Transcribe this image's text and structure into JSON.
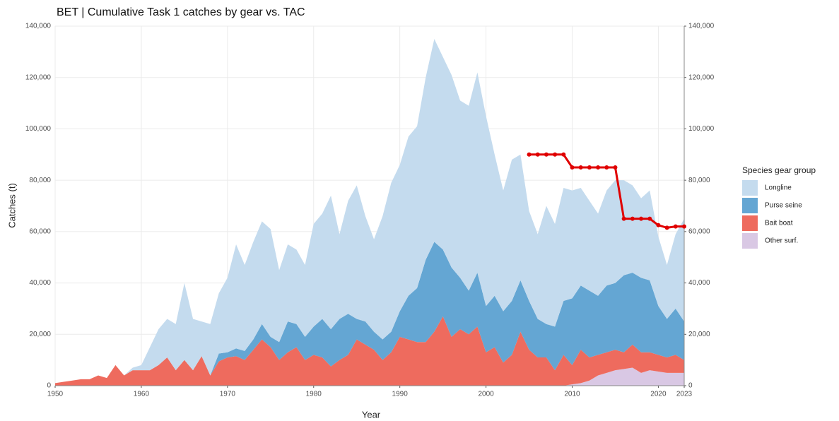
{
  "chart_data": {
    "type": "stacked_area",
    "title": "BET | Cumulative Task 1 catches by gear vs. TAC",
    "x_label": "Year",
    "y_label": "Catches (t)",
    "legend_title": "Species gear group",
    "legend_position": "right",
    "grid": true,
    "x": [
      1950,
      1951,
      1952,
      1953,
      1954,
      1955,
      1956,
      1957,
      1958,
      1959,
      1960,
      1961,
      1962,
      1963,
      1964,
      1965,
      1966,
      1967,
      1968,
      1969,
      1970,
      1971,
      1972,
      1973,
      1974,
      1975,
      1976,
      1977,
      1978,
      1979,
      1980,
      1981,
      1982,
      1983,
      1984,
      1985,
      1986,
      1987,
      1988,
      1989,
      1990,
      1991,
      1992,
      1993,
      1994,
      1995,
      1996,
      1997,
      1998,
      1999,
      2000,
      2001,
      2002,
      2003,
      2004,
      2005,
      2006,
      2007,
      2008,
      2009,
      2010,
      2011,
      2012,
      2013,
      2014,
      2015,
      2016,
      2017,
      2018,
      2019,
      2020,
      2021,
      2022,
      2023
    ],
    "series": [
      {
        "name": "Other surf.",
        "color": "#d9c8e4",
        "values": [
          0,
          0,
          0,
          0,
          0,
          0,
          0,
          0,
          0,
          0,
          0,
          0,
          0,
          0,
          0,
          0,
          0,
          0,
          0,
          0,
          0,
          0,
          0,
          0,
          0,
          0,
          0,
          0,
          0,
          0,
          0,
          0,
          0,
          0,
          0,
          0,
          0,
          0,
          0,
          0,
          0,
          0,
          0,
          0,
          0,
          0,
          0,
          0,
          0,
          0,
          0,
          0,
          0,
          0,
          0,
          0,
          0,
          0,
          0,
          0,
          500,
          1000,
          2000,
          4000,
          5000,
          6000,
          6500,
          7000,
          5000,
          6000,
          5500,
          5000,
          5000,
          5000
        ]
      },
      {
        "name": "Bait boat",
        "color": "#ee6b5e",
        "values": [
          1000,
          1500,
          2000,
          2500,
          2500,
          4000,
          3000,
          8000,
          4000,
          6000,
          6000,
          6000,
          8000,
          11000,
          6000,
          10000,
          6000,
          11500,
          4000,
          9500,
          11000,
          11500,
          10000,
          14000,
          18000,
          15000,
          10000,
          13000,
          15000,
          10000,
          12000,
          11000,
          7500,
          10000,
          12000,
          18000,
          16000,
          14000,
          10000,
          13000,
          19000,
          18000,
          17000,
          17000,
          21000,
          27000,
          19000,
          22000,
          20000,
          23000,
          13000,
          15000,
          9000,
          12000,
          21000,
          14000,
          11000,
          11000,
          6000,
          12000,
          7500,
          13000,
          9000,
          8000,
          8000,
          8000,
          6500,
          9000,
          8000,
          7000,
          6500,
          6000,
          7000,
          5000
        ]
      },
      {
        "name": "Purse seine",
        "color": "#64a6d3",
        "values": [
          0,
          0,
          0,
          0,
          0,
          0,
          0,
          0,
          0,
          0,
          0,
          0,
          0,
          0,
          0,
          0,
          0,
          0,
          0,
          3000,
          2000,
          3000,
          3500,
          4000,
          6000,
          4000,
          7000,
          12000,
          9000,
          9000,
          11000,
          15000,
          14500,
          16000,
          16000,
          8000,
          9000,
          7000,
          8000,
          8000,
          10000,
          17000,
          21000,
          32000,
          35000,
          26000,
          27000,
          20000,
          17000,
          21000,
          18000,
          20000,
          20000,
          21000,
          20000,
          19000,
          15000,
          13000,
          17000,
          21000,
          26000,
          25000,
          26000,
          23000,
          26000,
          26000,
          30000,
          28000,
          29000,
          28000,
          19000,
          15000,
          18000,
          15000
        ]
      },
      {
        "name": "Longline",
        "color": "#c4dbee",
        "values": [
          0,
          0,
          0,
          0,
          0,
          0,
          0,
          0,
          0,
          1000,
          2000,
          9000,
          14000,
          15000,
          18000,
          30000,
          20000,
          13500,
          20000,
          23500,
          29000,
          40500,
          33500,
          38000,
          40000,
          42000,
          28000,
          30000,
          29000,
          28000,
          40000,
          41000,
          52000,
          33000,
          44000,
          52000,
          41000,
          36000,
          48000,
          58000,
          57000,
          62000,
          63000,
          71000,
          79000,
          75000,
          75000,
          69000,
          72000,
          78000,
          74000,
          55000,
          47000,
          55000,
          49000,
          35000,
          33000,
          46000,
          40000,
          44000,
          42000,
          38000,
          35000,
          32000,
          37000,
          40000,
          37000,
          34000,
          31000,
          35000,
          27000,
          21000,
          29000,
          40000
        ]
      }
    ],
    "tac": {
      "color": "#e00000",
      "x": [
        2005,
        2006,
        2007,
        2008,
        2009,
        2010,
        2011,
        2012,
        2013,
        2014,
        2015,
        2016,
        2017,
        2018,
        2019,
        2020,
        2021,
        2022,
        2023
      ],
      "values": [
        90000,
        90000,
        90000,
        90000,
        90000,
        85000,
        85000,
        85000,
        85000,
        85000,
        85000,
        65000,
        65000,
        65000,
        65000,
        62500,
        61500,
        62000,
        62000
      ]
    },
    "xlim": [
      1950,
      2023
    ],
    "xticks": [
      1950,
      1960,
      1970,
      1980,
      1990,
      2000,
      2010,
      2020,
      2023
    ],
    "ylim": [
      0,
      140000
    ],
    "yticks": [
      0,
      {
        "value": 20000,
        "label": "20,000"
      },
      {
        "value": 40000,
        "label": "40,000"
      },
      {
        "value": 60000,
        "label": "60,000"
      },
      {
        "value": 80000,
        "label": "80,000"
      },
      {
        "value": 100000,
        "label": "100,000"
      },
      {
        "value": 120000,
        "label": "120,000"
      },
      {
        "value": 140000,
        "label": "140,000"
      }
    ],
    "y2lim": [
      0,
      140000
    ],
    "y2ticks": [
      0,
      {
        "value": 20000,
        "label": "20,000"
      },
      {
        "value": 40000,
        "label": "40,000"
      },
      {
        "value": 60000,
        "label": "60,000"
      },
      {
        "value": 80000,
        "label": "80,000"
      },
      {
        "value": 100000,
        "label": "100,000"
      },
      {
        "value": 120000,
        "label": "120,000"
      },
      {
        "value": 140000,
        "label": "140,000"
      }
    ]
  }
}
